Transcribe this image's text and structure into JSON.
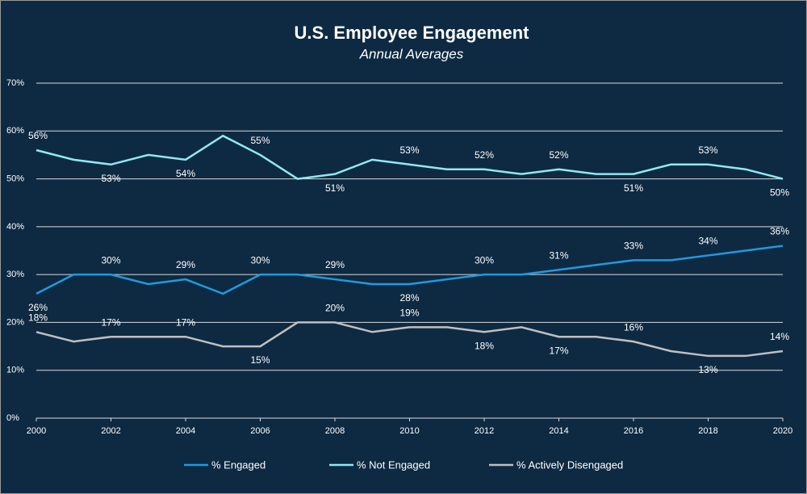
{
  "chart_data": {
    "type": "line",
    "title": "U.S. Employee Engagement",
    "subtitle": "Annual Averages",
    "x": [
      2000,
      2001,
      2002,
      2003,
      2004,
      2005,
      2006,
      2007,
      2008,
      2009,
      2010,
      2011,
      2012,
      2013,
      2014,
      2015,
      2016,
      2017,
      2018,
      2019,
      2020
    ],
    "xlim": [
      2000,
      2020
    ],
    "xticks": [
      2000,
      2002,
      2004,
      2006,
      2008,
      2010,
      2012,
      2014,
      2016,
      2018,
      2020
    ],
    "ylim": [
      0,
      70
    ],
    "yticks": [
      {
        "value": 0,
        "label": "0%"
      },
      {
        "value": 10,
        "label": "10%"
      },
      {
        "value": 20,
        "label": "20%"
      },
      {
        "value": 30,
        "label": "30%"
      },
      {
        "value": 40,
        "label": "40%"
      },
      {
        "value": 50,
        "label": "50%"
      },
      {
        "value": 60,
        "label": "60%"
      },
      {
        "value": 70,
        "label": "70%"
      }
    ],
    "grid": true,
    "legend": "bottom",
    "series": [
      {
        "name": "% Engaged",
        "color": "#1e9be0",
        "values": [
          26,
          30,
          30,
          28,
          29,
          26,
          30,
          30,
          29,
          28,
          28,
          29,
          30,
          30,
          31,
          32,
          33,
          33,
          34,
          35,
          36
        ],
        "value_labels": [
          "26%",
          null,
          "30%",
          null,
          "29%",
          null,
          "30%",
          null,
          "29%",
          null,
          "28%",
          null,
          "30%",
          null,
          "31%",
          null,
          "33%",
          null,
          "34%",
          null,
          "36%"
        ]
      },
      {
        "name": "% Not Engaged",
        "color": "#8fe9f2",
        "values": [
          56,
          54,
          53,
          55,
          54,
          59,
          55,
          50,
          51,
          54,
          53,
          52,
          52,
          51,
          52,
          51,
          51,
          53,
          53,
          52,
          50
        ],
        "value_labels": [
          "56%",
          null,
          "53%",
          null,
          "54%",
          null,
          "55%",
          null,
          "51%",
          null,
          "53%",
          null,
          "52%",
          null,
          "52%",
          null,
          "51%",
          null,
          "53%",
          null,
          "50%"
        ]
      },
      {
        "name": "% Actively Disengaged",
        "color": "#bfbfbf",
        "values": [
          18,
          16,
          17,
          17,
          17,
          15,
          15,
          20,
          20,
          18,
          19,
          19,
          18,
          19,
          17,
          17,
          16,
          14,
          13,
          13,
          14
        ],
        "value_labels": [
          "18%",
          null,
          "17%",
          null,
          "17%",
          null,
          "15%",
          null,
          "20%",
          null,
          "19%",
          null,
          "18%",
          null,
          "17%",
          null,
          "16%",
          null,
          "13%",
          null,
          "14%"
        ]
      }
    ]
  }
}
